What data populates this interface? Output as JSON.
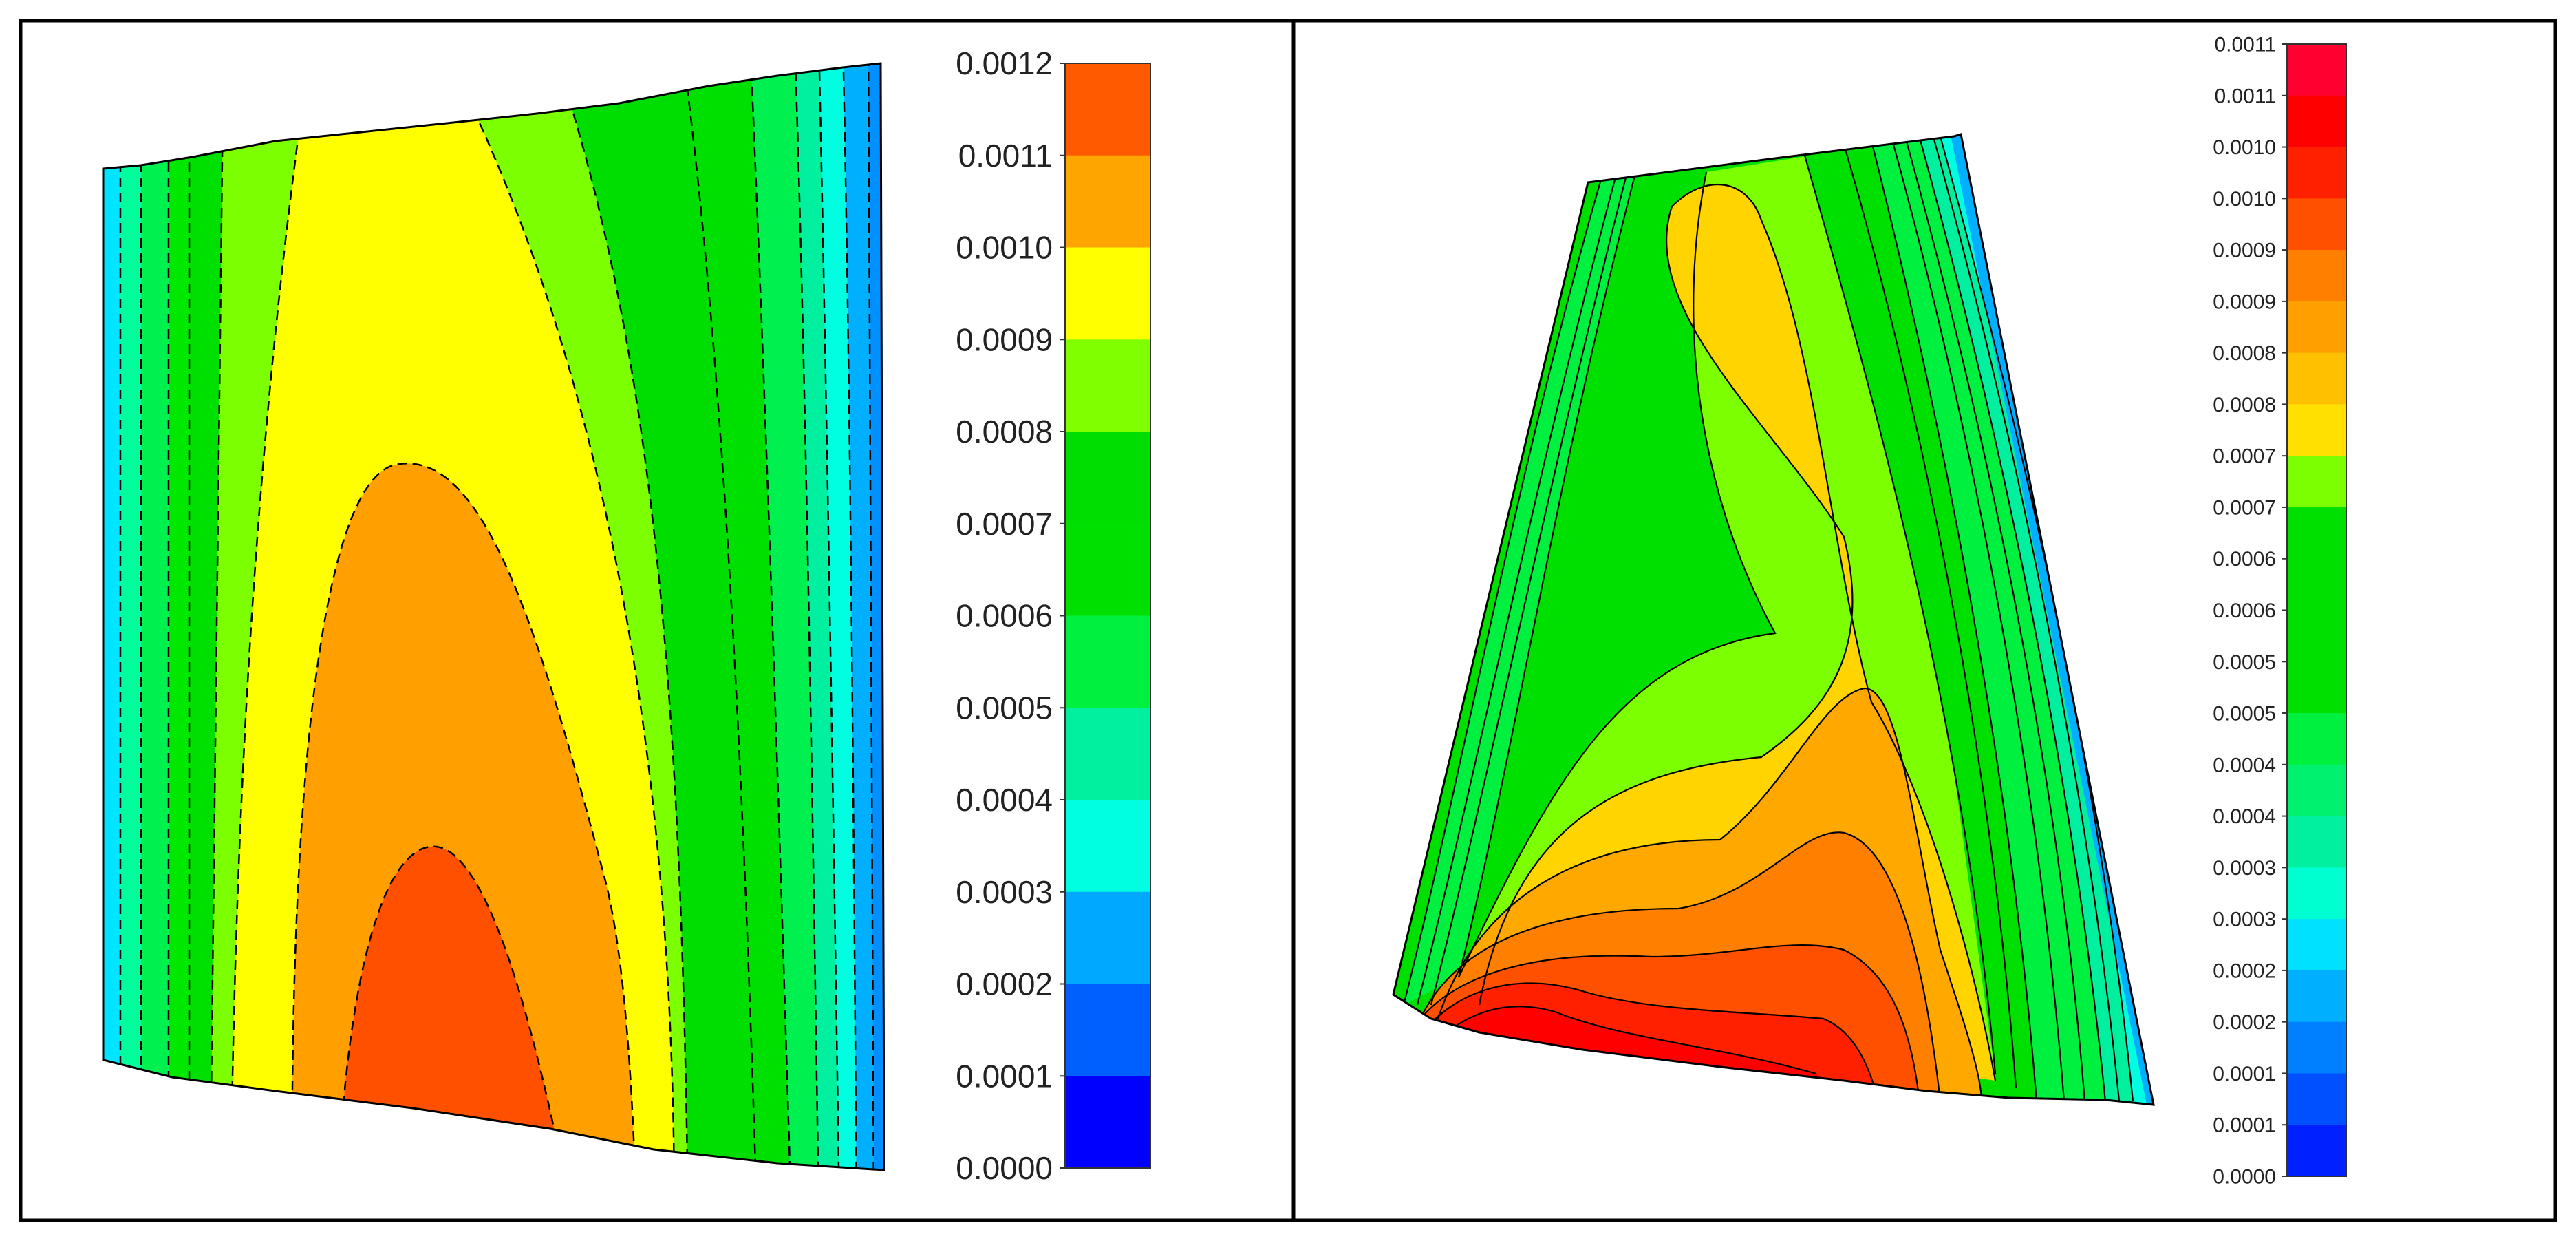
{
  "panels": [
    {
      "id": "left",
      "colorbar": {
        "labels": [
          "0.0012",
          "0.0011",
          "0.0010",
          "0.0009",
          "0.0008",
          "0.0007",
          "0.0006",
          "0.0005",
          "0.0004",
          "0.0003",
          "0.0002",
          "0.0001",
          "0.0000"
        ],
        "colors_top_to_bottom": [
          "#ff5a00",
          "#ffa500",
          "#ffff00",
          "#80ff00",
          "#00dd00",
          "#00e000",
          "#00f040",
          "#00f0a0",
          "#00ffe0",
          "#00a8ff",
          "#0060ff",
          "#0000ff"
        ]
      },
      "contour_bands_left_to_right": [
        "#00e5ff",
        "#00ff9c",
        "#00f050",
        "#00e800",
        "#00e000",
        "#7cff00",
        "#ffff00",
        "#ffa000",
        "#ff5000"
      ],
      "right_bands": [
        "#ffa000",
        "#ffff00",
        "#7cff00",
        "#00dd00",
        "#00e000",
        "#00f040",
        "#00f0a0",
        "#00ffe0",
        "#00c8ff",
        "#0090ff"
      ]
    },
    {
      "id": "right",
      "colorbar": {
        "labels": [
          "0.0011",
          "0.0011",
          "0.0010",
          "0.0010",
          "0.0009",
          "0.0009",
          "0.0008",
          "0.0008",
          "0.0007",
          "0.0007",
          "0.0006",
          "0.0006",
          "0.0005",
          "0.0005",
          "0.0004",
          "0.0004",
          "0.0003",
          "0.0003",
          "0.0002",
          "0.0002",
          "0.0001",
          "0.0001",
          "0.0000"
        ],
        "colors_top_to_bottom": [
          "#ff0030",
          "#ff0000",
          "#ff2000",
          "#ff5000",
          "#ff8000",
          "#ffa000",
          "#ffc000",
          "#ffe000",
          "#7cff00",
          "#00e000",
          "#00e000",
          "#00e000",
          "#00e000",
          "#00f040",
          "#00f070",
          "#00f0a0",
          "#00ffd0",
          "#00e0ff",
          "#00b0ff",
          "#0080ff",
          "#0050ff",
          "#0020ff"
        ]
      }
    }
  ]
}
